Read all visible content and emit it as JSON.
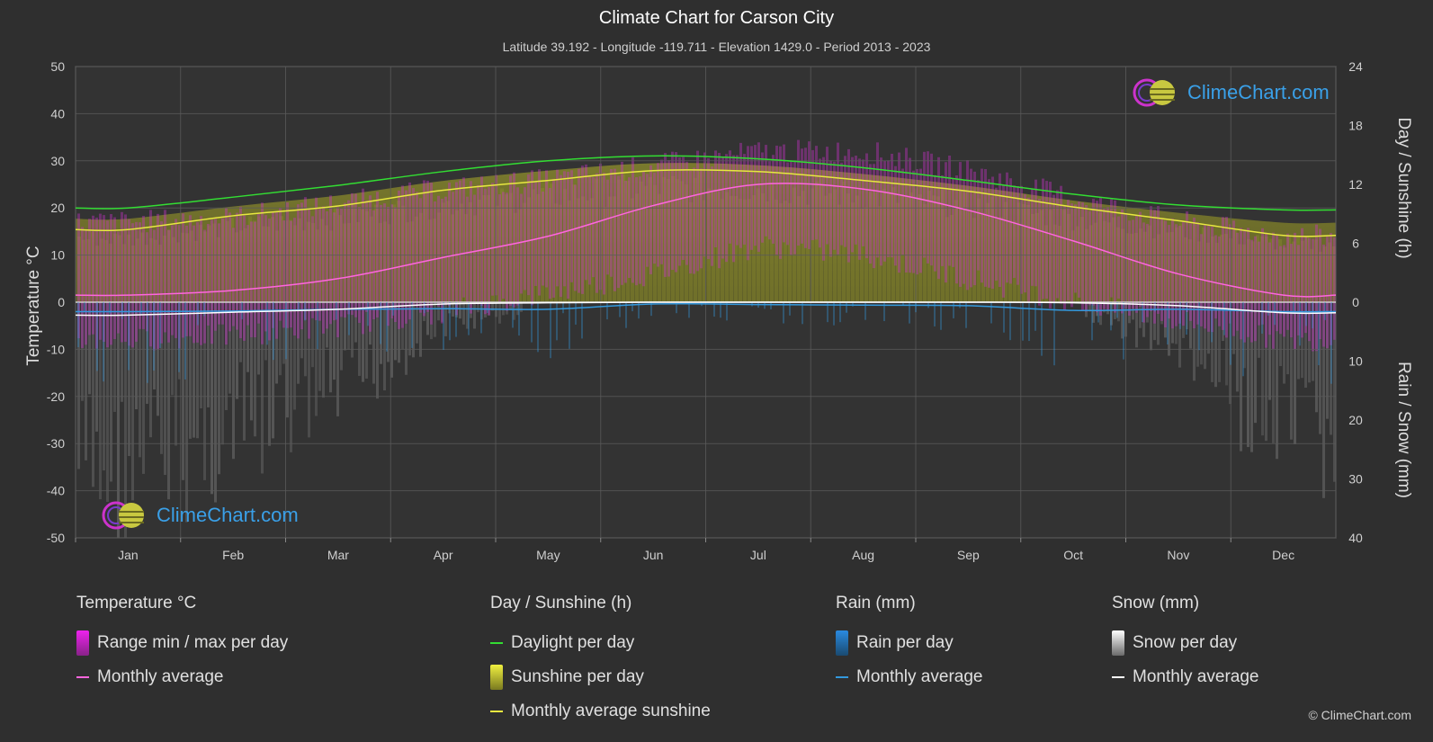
{
  "header": {
    "title": "Climate Chart for Carson City",
    "subtitle": "Latitude 39.192 - Longitude -119.711 - Elevation 1429.0 - Period 2013 - 2023"
  },
  "axes": {
    "left_title": "Temperature °C",
    "right_top_title": "Day / Sunshine (h)",
    "right_bottom_title": "Rain / Snow (mm)"
  },
  "logo": {
    "text": "ClimeChart.com"
  },
  "legend": {
    "temperature": {
      "heading": "Temperature °C",
      "range_label": "Range min / max per day",
      "avg_label": "Monthly average"
    },
    "sunshine": {
      "heading": "Day / Sunshine (h)",
      "daylight_label": "Daylight per day",
      "sunshine_label": "Sunshine per day",
      "avg_label": "Monthly average sunshine"
    },
    "rain": {
      "heading": "Rain (mm)",
      "per_day_label": "Rain per day",
      "avg_label": "Monthly average"
    },
    "snow": {
      "heading": "Snow (mm)",
      "per_day_label": "Snow per day",
      "avg_label": "Monthly average"
    }
  },
  "copyright": "© ClimeChart.com",
  "colors": {
    "background": "#2f2f2f",
    "grid": "#5a5a5a",
    "daylight": "#33dd33",
    "sunshine_avg": "#e8e840",
    "sunshine_fill": "#8c8c2a",
    "temp_avg": "#ff66dd",
    "temp_range": "#cc33cc",
    "rain": "#3399dd",
    "snow": "#ffffff",
    "snow_fill": "#5e5e5e",
    "logo_text": "#3aa0e8"
  },
  "chart_data": {
    "type": "line",
    "months": [
      "Jan",
      "Feb",
      "Mar",
      "Apr",
      "May",
      "Jun",
      "Jul",
      "Aug",
      "Sep",
      "Oct",
      "Nov",
      "Dec"
    ],
    "left_axis": {
      "label": "Temperature °C",
      "ylim": [
        -50,
        50
      ],
      "ticks": [
        50,
        40,
        30,
        20,
        10,
        0,
        -10,
        -20,
        -30,
        -40,
        -50
      ]
    },
    "right_axis_top": {
      "label": "Day / Sunshine (h)",
      "ylim": [
        0,
        24
      ],
      "ticks": [
        24,
        18,
        12,
        6,
        0
      ]
    },
    "right_axis_bottom": {
      "label": "Rain / Snow (mm)",
      "ylim": [
        0,
        40
      ],
      "ticks": [
        0,
        10,
        20,
        30,
        40
      ]
    },
    "grid": true,
    "series": [
      {
        "name": "Daylight per day",
        "unit": "h",
        "values": [
          9.6,
          10.7,
          11.9,
          13.3,
          14.4,
          14.9,
          14.6,
          13.7,
          12.4,
          11.0,
          9.9,
          9.4
        ]
      },
      {
        "name": "Monthly average sunshine",
        "unit": "h",
        "values": [
          7.4,
          8.8,
          9.8,
          11.4,
          12.4,
          13.4,
          13.3,
          12.4,
          11.3,
          9.7,
          8.3,
          6.8
        ]
      },
      {
        "name": "Temperature monthly average",
        "unit": "°C",
        "values": [
          1.5,
          2.5,
          5.0,
          9.5,
          14.0,
          20.5,
          25.0,
          24.0,
          19.5,
          13.0,
          6.0,
          1.5
        ]
      },
      {
        "name": "Temperature daily max (approx.)",
        "unit": "°C",
        "values": [
          17,
          18,
          21,
          24,
          26,
          29,
          32,
          32,
          28,
          22,
          17,
          14
        ]
      },
      {
        "name": "Temperature daily min (approx.)",
        "unit": "°C",
        "values": [
          -8,
          -7,
          -5,
          -2,
          2,
          6,
          12,
          10,
          5,
          0,
          -4,
          -8
        ]
      },
      {
        "name": "Rain monthly average",
        "unit": "mm",
        "values": [
          1.6,
          1.5,
          1.2,
          1.1,
          1.2,
          0.3,
          0.4,
          0.5,
          0.6,
          1.4,
          1.2,
          1.6
        ]
      },
      {
        "name": "Snow monthly average",
        "unit": "mm",
        "values": [
          2.2,
          1.7,
          1.2,
          0.3,
          0.1,
          0.0,
          0.0,
          0.0,
          0.0,
          0.1,
          0.6,
          1.8
        ]
      }
    ]
  }
}
